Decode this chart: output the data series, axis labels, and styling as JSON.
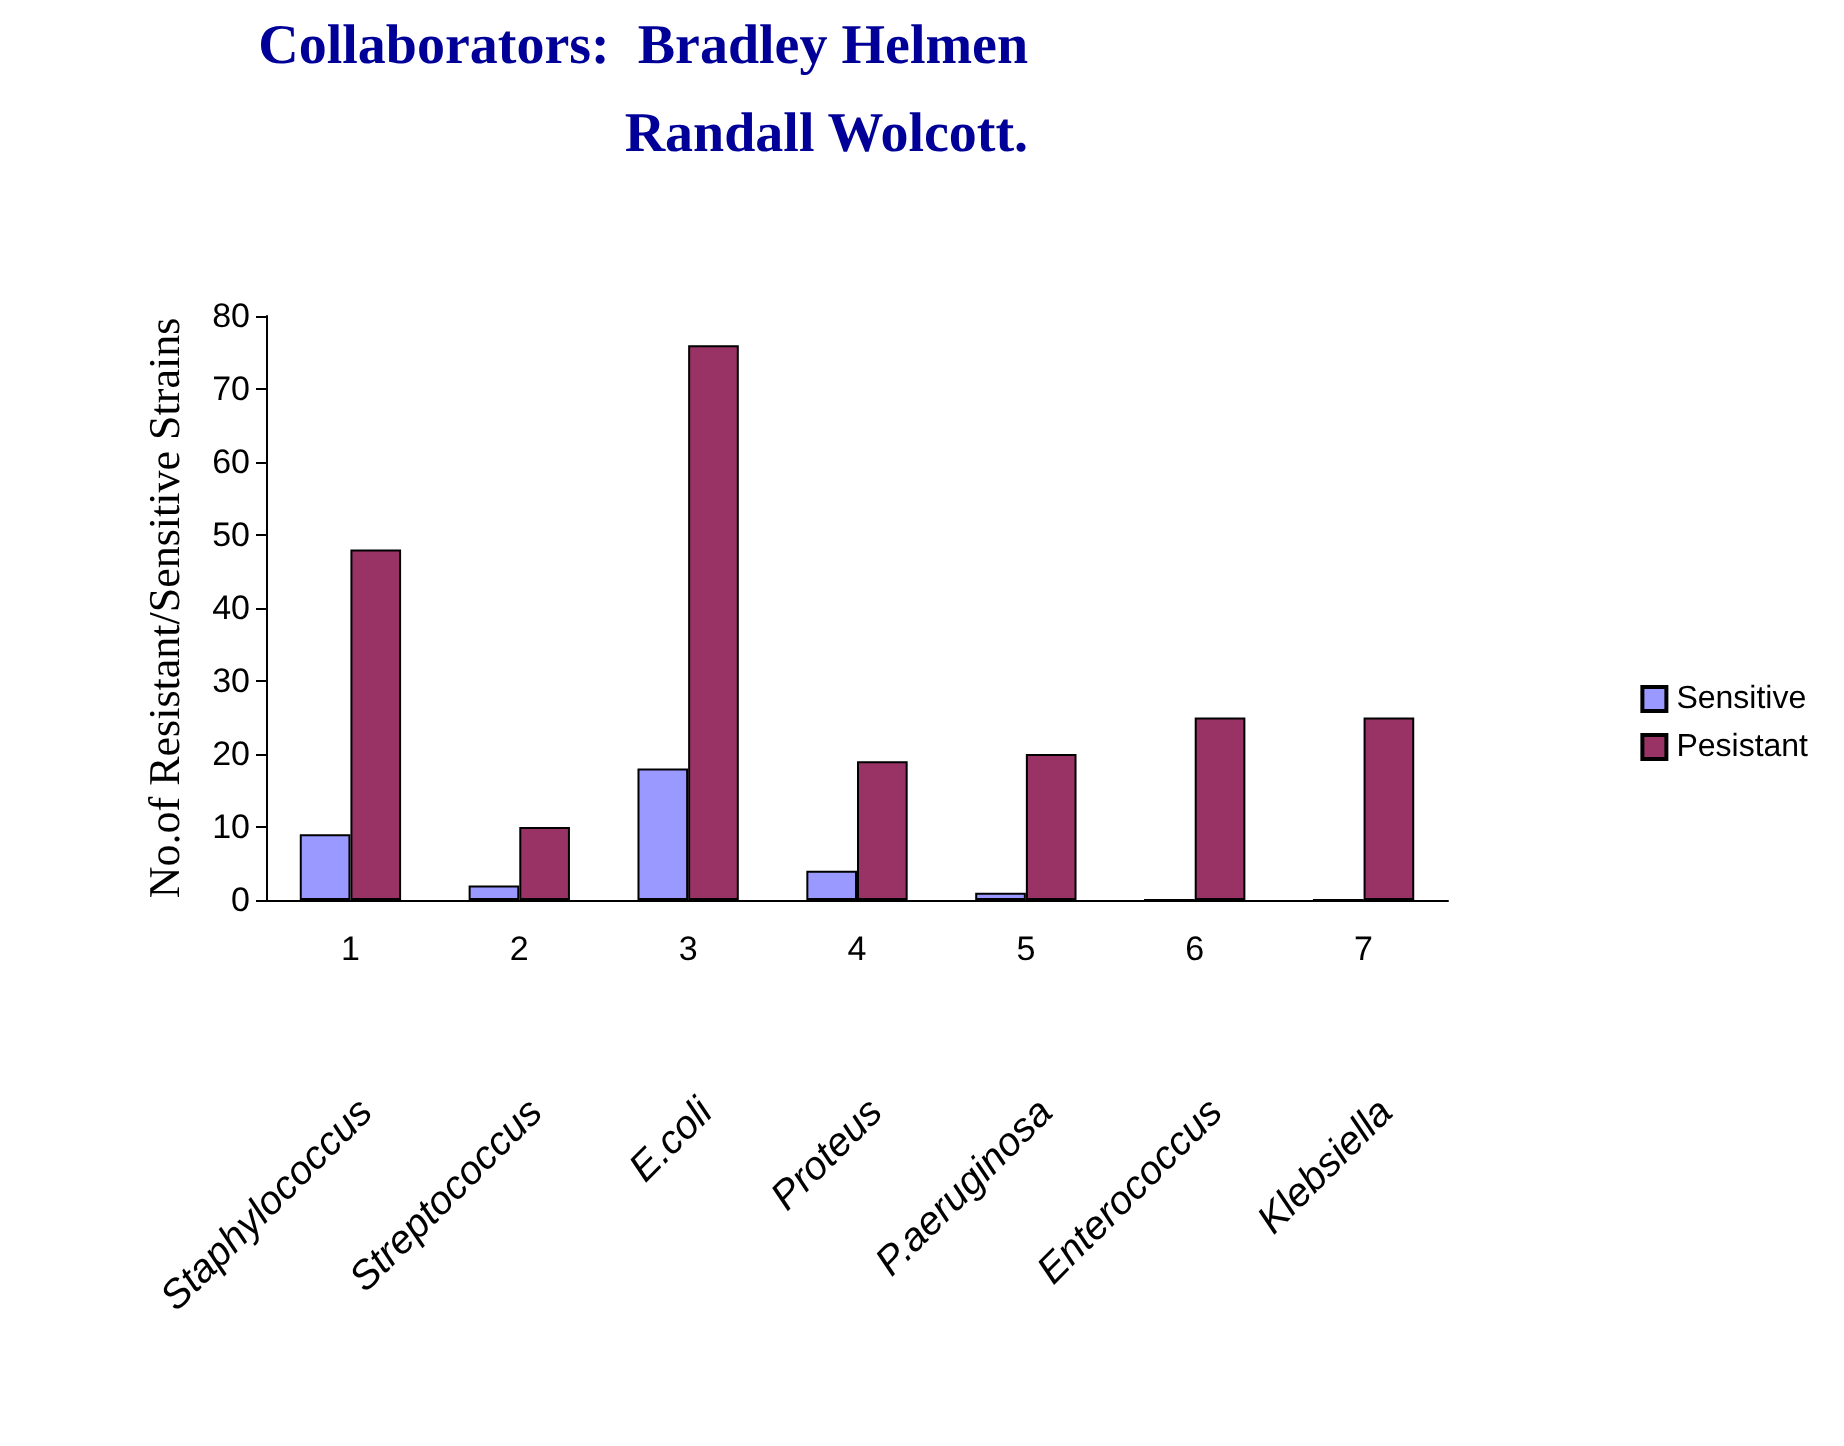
{
  "chart_data": {
    "type": "bar",
    "title": "Collaborators:  Bradley Helmen\nRandall Wolcott.",
    "ylabel": "No.of Resistant/Sensitive Strains",
    "categories": [
      "1",
      "2",
      "3",
      "4",
      "5",
      "6",
      "7"
    ],
    "series": [
      {
        "name": "Sensitive",
        "color": "#9999ff",
        "values": [
          9,
          2,
          18,
          4,
          1,
          0,
          0
        ]
      },
      {
        "name": "Pesistant",
        "color": "#993366",
        "values": [
          48,
          10,
          76,
          19,
          20,
          25,
          25
        ]
      }
    ],
    "ylim": [
      0,
      80
    ],
    "yticks": [
      0,
      10,
      20,
      30,
      40,
      50,
      60,
      70,
      80
    ],
    "grid": false,
    "legend": "right",
    "annotations": [
      "Staphylococcus",
      "Streptococcus",
      "E.coli",
      "Proteus",
      "P.aeruginosa",
      "Enterococcus",
      "Klebsiella"
    ]
  }
}
